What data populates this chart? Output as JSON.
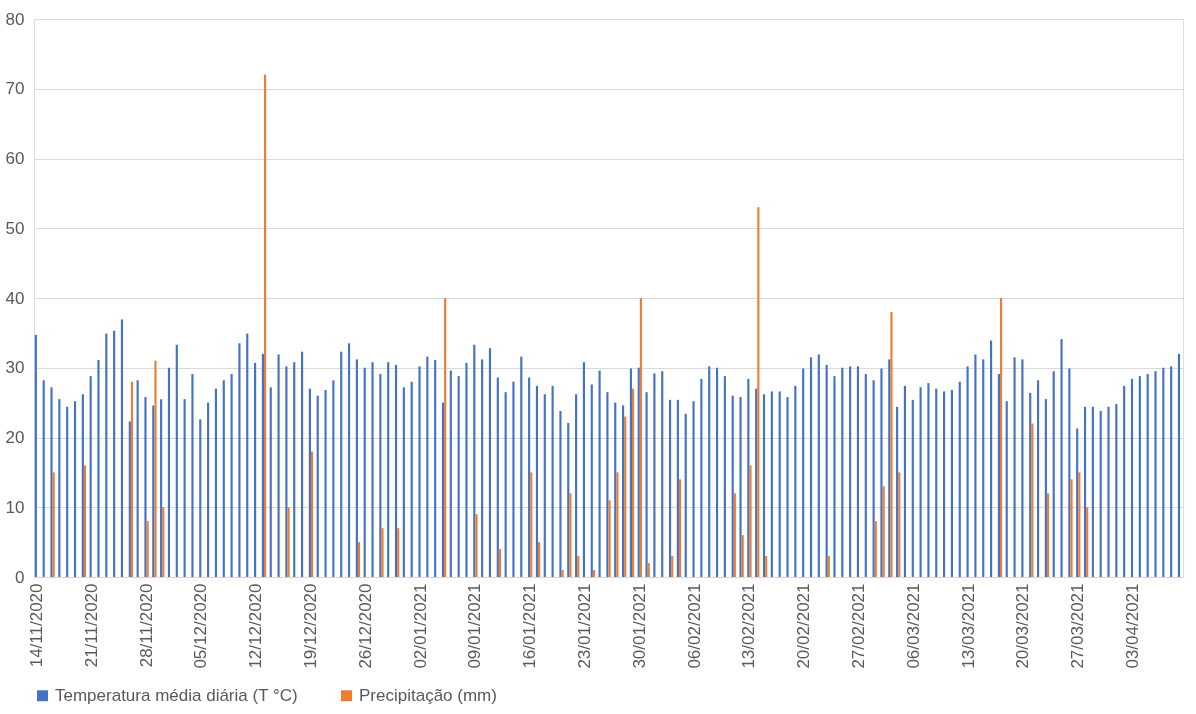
{
  "chart_data": {
    "type": "bar",
    "categories": [
      "14/11/2020",
      null,
      null,
      null,
      null,
      null,
      null,
      "21/11/2020",
      null,
      null,
      null,
      null,
      null,
      null,
      "28/11/2020",
      null,
      null,
      null,
      null,
      null,
      null,
      "05/12/2020",
      null,
      null,
      null,
      null,
      null,
      null,
      "12/12/2020",
      null,
      null,
      null,
      null,
      null,
      null,
      "19/12/2020",
      null,
      null,
      null,
      null,
      null,
      null,
      "26/12/2020",
      null,
      null,
      null,
      null,
      null,
      null,
      "02/01/2021",
      null,
      null,
      null,
      null,
      null,
      null,
      "09/01/2021",
      null,
      null,
      null,
      null,
      null,
      null,
      "16/01/2021",
      null,
      null,
      null,
      null,
      null,
      null,
      "23/01/2021",
      null,
      null,
      null,
      null,
      null,
      null,
      "30/01/2021",
      null,
      null,
      null,
      null,
      null,
      null,
      "06/02/2021",
      null,
      null,
      null,
      null,
      null,
      null,
      "13/02/2021",
      null,
      null,
      null,
      null,
      null,
      null,
      "20/02/2021",
      null,
      null,
      null,
      null,
      null,
      null,
      "27/02/2021",
      null,
      null,
      null,
      null,
      null,
      null,
      "06/03/2021",
      null,
      null,
      null,
      null,
      null,
      null,
      "13/03/2021",
      null,
      null,
      null,
      null,
      null,
      null,
      "20/03/2021",
      null,
      null,
      null,
      null,
      null,
      null,
      "27/03/2021",
      null,
      null,
      null,
      null,
      null,
      null,
      "03/04/2021",
      null,
      null,
      null,
      null,
      null,
      null
    ],
    "series": [
      {
        "name": "Temperatura média diária (T °C)",
        "color": "#4472c4",
        "values": [
          34.7,
          28.2,
          27.2,
          25.5,
          24.4,
          25.2,
          26.2,
          28.8,
          31.1,
          34.9,
          35.3,
          36.9,
          22.3,
          28.2,
          25.8,
          24.6,
          25.5,
          30.0,
          33.3,
          25.5,
          29.1,
          22.6,
          25.0,
          27.0,
          28.2,
          29.1,
          33.5,
          34.9,
          30.7,
          32.0,
          27.2,
          31.9,
          30.2,
          30.8,
          32.3,
          27.0,
          26.0,
          26.8,
          28.2,
          32.3,
          33.5,
          31.2,
          30.0,
          30.8,
          29.1,
          30.8,
          30.4,
          27.2,
          28.0,
          30.2,
          31.6,
          31.1,
          25.0,
          29.6,
          28.8,
          30.7,
          33.3,
          31.2,
          32.8,
          28.6,
          26.5,
          28.0,
          31.6,
          28.6,
          27.4,
          26.2,
          27.4,
          23.8,
          22.1,
          26.2,
          30.8,
          27.6,
          29.6,
          26.5,
          25.0,
          24.6,
          29.9,
          30.0,
          26.5,
          29.2,
          29.5,
          25.4,
          25.4,
          23.4,
          25.2,
          28.4,
          30.2,
          30.0,
          28.8,
          26.0,
          25.8,
          28.4,
          27.0,
          26.2,
          26.6,
          26.6,
          25.8,
          27.4,
          29.9,
          31.5,
          31.9,
          30.4,
          28.8,
          30.0,
          30.2,
          30.2,
          29.1,
          28.2,
          29.9,
          31.2,
          24.4,
          27.4,
          25.4,
          27.2,
          27.8,
          27.0,
          26.6,
          26.8,
          28.0,
          30.2,
          31.9,
          31.2,
          33.9,
          29.1,
          25.2,
          31.5,
          31.2,
          26.4,
          28.2,
          25.5,
          29.5,
          34.1,
          29.9,
          21.3,
          24.4,
          24.4,
          23.8,
          24.4,
          24.8,
          27.4,
          28.4,
          28.8,
          29.1,
          29.5,
          30.0,
          30.2,
          32.0
        ]
      },
      {
        "name": "Precipitação (mm)",
        "color": "#ed7d31",
        "values": [
          0,
          0,
          15,
          0,
          0,
          0,
          16,
          0,
          0,
          0,
          0,
          0,
          28,
          0,
          8,
          31,
          10,
          0,
          0,
          0,
          0,
          0,
          0,
          0,
          0,
          0,
          0,
          0,
          0,
          72,
          0,
          0,
          10,
          0,
          0,
          18,
          0,
          0,
          0,
          0,
          0,
          5,
          0,
          0,
          7,
          0,
          7,
          0,
          0,
          0,
          0,
          0,
          40,
          0,
          0,
          0,
          9,
          0,
          0,
          4,
          0,
          0,
          0,
          15,
          5,
          0,
          0,
          1,
          12,
          3,
          0,
          1,
          0,
          11,
          15,
          23,
          27,
          40,
          2,
          0,
          0,
          3,
          14,
          0,
          0,
          0,
          0,
          0,
          0,
          12,
          6,
          16,
          53,
          3,
          0,
          0,
          0,
          0,
          0,
          0,
          0,
          3,
          0,
          0,
          0,
          0,
          0,
          8,
          13,
          38,
          15,
          0,
          0,
          0,
          0,
          0,
          0,
          0,
          0,
          0,
          0,
          0,
          0,
          40,
          0,
          0,
          0,
          22,
          0,
          12,
          0,
          0,
          14,
          15,
          10,
          0,
          0,
          0,
          0,
          0,
          0,
          0,
          0,
          0,
          0,
          0,
          0
        ]
      }
    ],
    "ylim": [
      0,
      80
    ],
    "yticks": [
      0,
      10,
      20,
      30,
      40,
      50,
      60,
      70,
      80
    ],
    "grid": "y",
    "legend": "bottom"
  }
}
